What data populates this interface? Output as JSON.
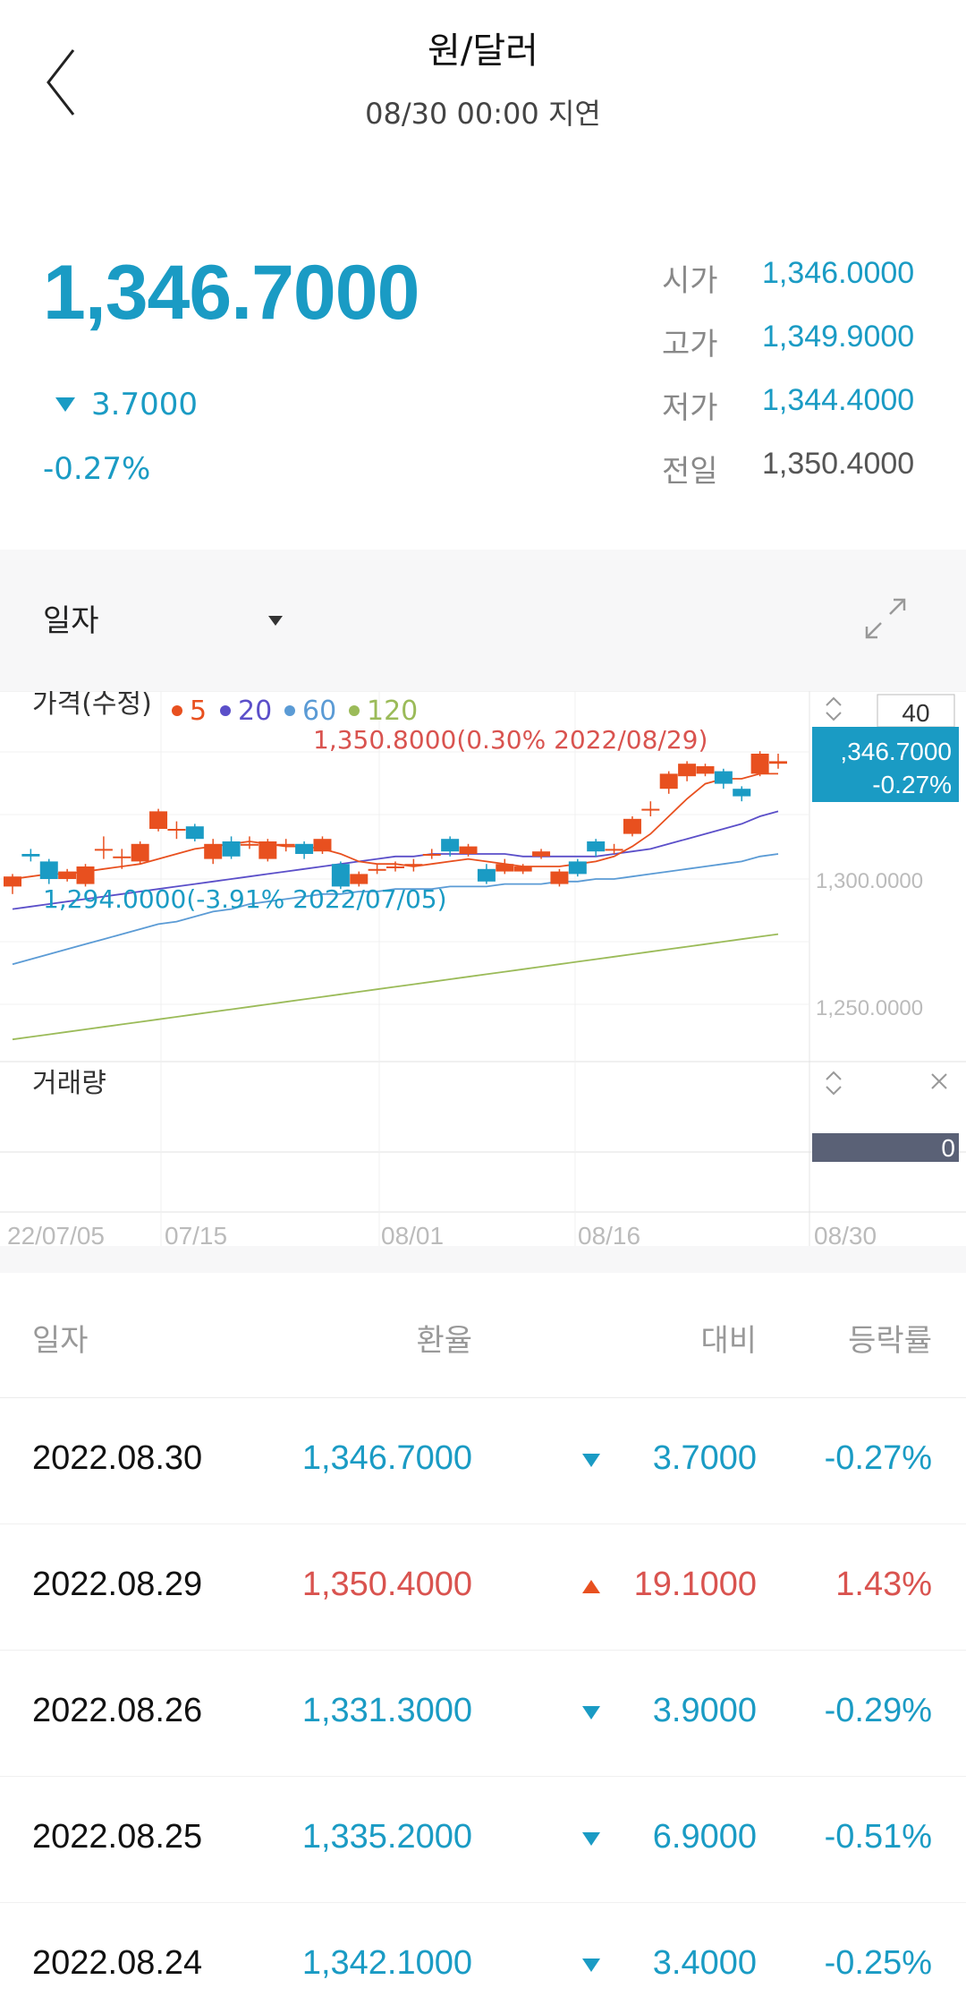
{
  "header": {
    "title": "원/달러",
    "subtitle": "08/30 00:00 지연"
  },
  "quote": {
    "price": "1,346.7000",
    "change": "3.7000",
    "change_direction": "down",
    "change_pct": "-0.27%",
    "ohlc": [
      {
        "label": "시가",
        "value": "1,346.0000"
      },
      {
        "label": "고가",
        "value": "1,349.9000"
      },
      {
        "label": "저가",
        "value": "1,344.4000"
      },
      {
        "label": "전일",
        "value": "1,350.4000"
      }
    ]
  },
  "chart_controls": {
    "period": "일자",
    "count": "40"
  },
  "chart_labels": {
    "price_panel": "가격(수정)",
    "ma": [
      {
        "label": "5",
        "color": "#e8501f"
      },
      {
        "label": "20",
        "color": "#5b4fc9"
      },
      {
        "label": "60",
        "color": "#5b9bd5"
      },
      {
        "label": "120",
        "color": "#9bbb59"
      }
    ],
    "high_annotation": "1,350.8000(0.30% 2022/08/29)",
    "low_annotation": "1,294.0000(-3.91% 2022/07/05)",
    "current_box_price": ",346.7000",
    "current_box_pct": "-0.27%",
    "volume_panel": "거래량",
    "volume_value": "0"
  },
  "chart_data": {
    "type": "candlestick",
    "y_ticks": [
      "1,300.0000",
      "1,250.0000"
    ],
    "x_ticks": [
      "22/07/05",
      "07/15",
      "08/01",
      "08/16",
      "08/30"
    ],
    "candles": [
      {
        "o": 1297,
        "c": 1301,
        "h": 1302,
        "l": 1294
      },
      {
        "o": 1310,
        "c": 1309,
        "h": 1312,
        "l": 1307
      },
      {
        "o": 1307,
        "c": 1300,
        "h": 1308,
        "l": 1298
      },
      {
        "o": 1300,
        "c": 1303,
        "h": 1304,
        "l": 1299
      },
      {
        "o": 1298,
        "c": 1305,
        "h": 1306,
        "l": 1297
      },
      {
        "o": 1312,
        "c": 1312,
        "h": 1317,
        "l": 1308
      },
      {
        "o": 1309,
        "c": 1309,
        "h": 1312,
        "l": 1304
      },
      {
        "o": 1307,
        "c": 1314,
        "h": 1315,
        "l": 1306
      },
      {
        "o": 1320,
        "c": 1327,
        "h": 1328,
        "l": 1319
      },
      {
        "o": 1320,
        "c": 1320,
        "h": 1323,
        "l": 1316
      },
      {
        "o": 1321,
        "c": 1316,
        "h": 1322,
        "l": 1315
      },
      {
        "o": 1308,
        "c": 1314,
        "h": 1316,
        "l": 1306
      },
      {
        "o": 1315,
        "c": 1309,
        "h": 1317,
        "l": 1308
      },
      {
        "o": 1314,
        "c": 1314,
        "h": 1317,
        "l": 1312
      },
      {
        "o": 1308,
        "c": 1315,
        "h": 1316,
        "l": 1307
      },
      {
        "o": 1314,
        "c": 1314,
        "h": 1316,
        "l": 1311
      },
      {
        "o": 1314,
        "c": 1310,
        "h": 1315,
        "l": 1308
      },
      {
        "o": 1311,
        "c": 1316,
        "h": 1317,
        "l": 1310
      },
      {
        "o": 1306,
        "c": 1297,
        "h": 1307,
        "l": 1296
      },
      {
        "o": 1298,
        "c": 1302,
        "h": 1303,
        "l": 1297
      },
      {
        "o": 1304,
        "c": 1304,
        "h": 1306,
        "l": 1302
      },
      {
        "o": 1305,
        "c": 1305,
        "h": 1307,
        "l": 1303
      },
      {
        "o": 1306,
        "c": 1306,
        "h": 1308,
        "l": 1303
      },
      {
        "o": 1310,
        "c": 1310,
        "h": 1312,
        "l": 1308
      },
      {
        "o": 1316,
        "c": 1311,
        "h": 1317,
        "l": 1309
      },
      {
        "o": 1310,
        "c": 1313,
        "h": 1314,
        "l": 1309
      },
      {
        "o": 1304,
        "c": 1299,
        "h": 1306,
        "l": 1298
      },
      {
        "o": 1303,
        "c": 1306,
        "h": 1308,
        "l": 1302
      },
      {
        "o": 1303,
        "c": 1305,
        "h": 1306,
        "l": 1302
      },
      {
        "o": 1309,
        "c": 1311,
        "h": 1312,
        "l": 1308
      },
      {
        "o": 1298,
        "c": 1303,
        "h": 1304,
        "l": 1297
      },
      {
        "o": 1307,
        "c": 1302,
        "h": 1308,
        "l": 1301
      },
      {
        "o": 1315,
        "c": 1311,
        "h": 1316,
        "l": 1309
      },
      {
        "o": 1312,
        "c": 1312,
        "h": 1314,
        "l": 1310
      },
      {
        "o": 1318,
        "c": 1324,
        "h": 1325,
        "l": 1317
      },
      {
        "o": 1328,
        "c": 1328,
        "h": 1331,
        "l": 1325
      },
      {
        "o": 1336,
        "c": 1342,
        "h": 1343,
        "l": 1334
      },
      {
        "o": 1341,
        "c": 1346,
        "h": 1347,
        "l": 1339
      },
      {
        "o": 1342,
        "c": 1345,
        "h": 1346,
        "l": 1341
      },
      {
        "o": 1343,
        "c": 1338,
        "h": 1344,
        "l": 1336
      },
      {
        "o": 1336,
        "c": 1333,
        "h": 1337,
        "l": 1331
      },
      {
        "o": 1342,
        "c": 1350,
        "h": 1351,
        "l": 1341
      },
      {
        "o": 1346,
        "c": 1347,
        "h": 1350,
        "l": 1344
      }
    ],
    "ma5": [
      1300,
      1301,
      1302,
      1302,
      1303,
      1304,
      1305,
      1306,
      1308,
      1310,
      1312,
      1313,
      1314,
      1315,
      1314,
      1313,
      1313,
      1312,
      1310,
      1307,
      1306,
      1306,
      1305,
      1306,
      1307,
      1308,
      1307,
      1306,
      1305,
      1305,
      1305,
      1306,
      1307,
      1309,
      1313,
      1318,
      1325,
      1332,
      1338,
      1340,
      1340,
      1342,
      1342
    ],
    "ma20": [
      1288,
      1289,
      1290,
      1291,
      1292,
      1293,
      1294,
      1295,
      1296,
      1297,
      1298,
      1299,
      1300,
      1301,
      1302,
      1303,
      1304,
      1305,
      1306,
      1307,
      1308,
      1309,
      1309,
      1310,
      1310,
      1310,
      1310,
      1310,
      1309,
      1309,
      1309,
      1309,
      1309,
      1310,
      1311,
      1312,
      1314,
      1316,
      1318,
      1320,
      1322,
      1325,
      1327
    ],
    "ma60": [
      1266,
      1268,
      1270,
      1272,
      1274,
      1276,
      1278,
      1280,
      1282,
      1283,
      1285,
      1287,
      1288,
      1290,
      1291,
      1292,
      1293,
      1294,
      1294,
      1295,
      1295,
      1296,
      1296,
      1296,
      1297,
      1297,
      1297,
      1298,
      1298,
      1298,
      1299,
      1299,
      1300,
      1300,
      1301,
      1302,
      1303,
      1304,
      1305,
      1306,
      1307,
      1309,
      1310
    ],
    "ma120": [
      1236,
      1237,
      1238,
      1239,
      1240,
      1241,
      1242,
      1243,
      1244,
      1245,
      1246,
      1247,
      1248,
      1249,
      1250,
      1251,
      1252,
      1253,
      1254,
      1255,
      1256,
      1257,
      1258,
      1259,
      1260,
      1261,
      1262,
      1263,
      1264,
      1265,
      1266,
      1267,
      1268,
      1269,
      1270,
      1271,
      1272,
      1273,
      1274,
      1275,
      1276,
      1277,
      1278
    ]
  },
  "table": {
    "headers": [
      "일자",
      "환율",
      "대비",
      "등락률"
    ],
    "rows": [
      {
        "date": "2022.08.30",
        "rate": "1,346.7000",
        "dir": "down",
        "diff": "3.7000",
        "pct": "-0.27%"
      },
      {
        "date": "2022.08.29",
        "rate": "1,350.4000",
        "dir": "up",
        "diff": "19.1000",
        "pct": "1.43%"
      },
      {
        "date": "2022.08.26",
        "rate": "1,331.3000",
        "dir": "down",
        "diff": "3.9000",
        "pct": "-0.29%"
      },
      {
        "date": "2022.08.25",
        "rate": "1,335.2000",
        "dir": "down",
        "diff": "6.9000",
        "pct": "-0.51%"
      },
      {
        "date": "2022.08.24",
        "rate": "1,342.1000",
        "dir": "down",
        "diff": "3.4000",
        "pct": "-0.25%"
      }
    ]
  },
  "colors": {
    "accent_blue": "#1a9bc4",
    "up_red": "#e8501f",
    "text_red": "#d9534f"
  }
}
